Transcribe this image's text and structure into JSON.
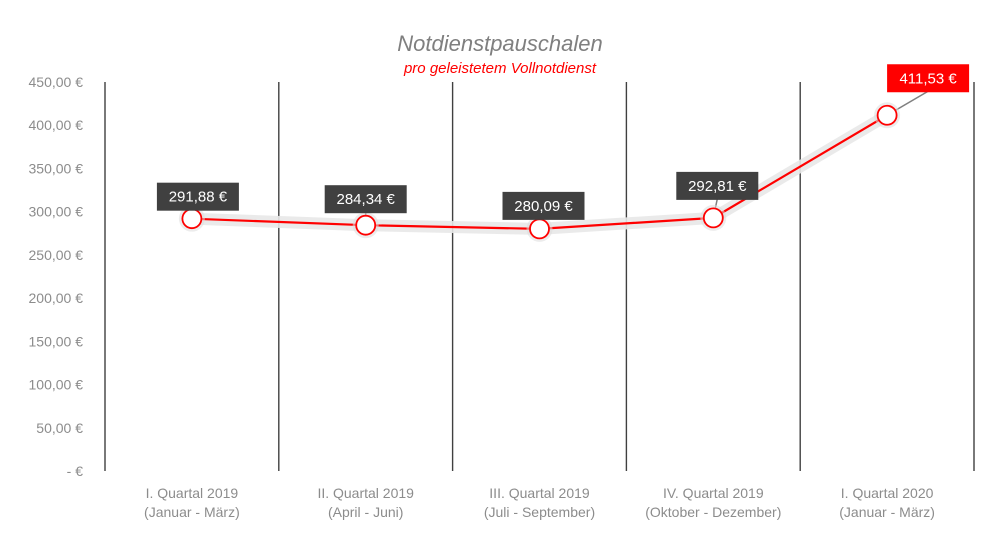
{
  "chart_data": {
    "type": "line",
    "title": "Notdienstpauschalen",
    "subtitle": "pro geleistetem Vollnotdienst",
    "categories": [
      [
        "I. Quartal 2019",
        "(Januar - März)"
      ],
      [
        "II. Quartal 2019",
        "(April - Juni)"
      ],
      [
        "III. Quartal 2019",
        "(Juli - September)"
      ],
      [
        "IV. Quartal 2019",
        "(Oktober - Dezember)"
      ],
      [
        "I. Quartal 2020",
        "(Januar - März)"
      ]
    ],
    "values": [
      291.88,
      284.34,
      280.09,
      292.81,
      411.53
    ],
    "data_labels": [
      "291,88 €",
      "284,34 €",
      "280,09 €",
      "292,81 €",
      "411,53 €"
    ],
    "highlight_index": 4,
    "ylim": [
      0,
      450
    ],
    "y_ticks": [
      {
        "value": 450,
        "label": "450,00 €"
      },
      {
        "value": 400,
        "label": "400,00 €"
      },
      {
        "value": 350,
        "label": "350,00 €"
      },
      {
        "value": 300,
        "label": "300,00 €"
      },
      {
        "value": 250,
        "label": "250,00 €"
      },
      {
        "value": 200,
        "label": "200,00 €"
      },
      {
        "value": 150,
        "label": "150,00 €"
      },
      {
        "value": 100,
        "label": "100,00 €"
      },
      {
        "value": 50,
        "label": "50,00 €"
      },
      {
        "value": 0,
        "label": "-   €"
      }
    ],
    "grid": "vertical category separators",
    "colors": {
      "line": "#ff0000",
      "marker_fill": "#ffffff",
      "label_bg": "#404040",
      "label_highlight_bg": "#ff0000",
      "separator": "#404040"
    }
  }
}
